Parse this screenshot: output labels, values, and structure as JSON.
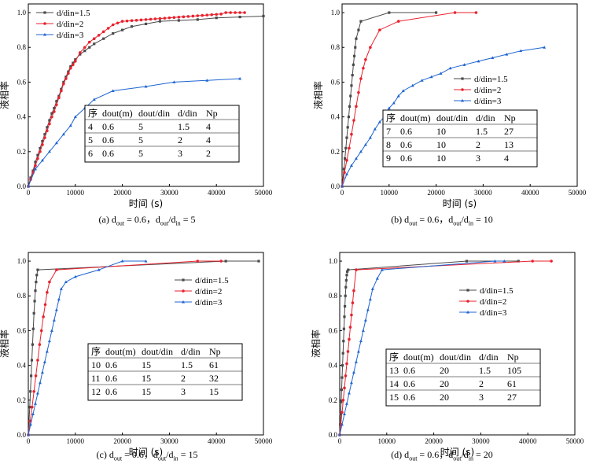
{
  "colors": {
    "d15": "#4a4a4a",
    "d2": "#e8222e",
    "d3": "#1e64d2"
  },
  "chart_data": [
    {
      "type": "line",
      "id": "a",
      "xlabel": "时间 (s)",
      "ylabel": "液相率",
      "xlim": [
        0,
        50000
      ],
      "ylim": [
        0,
        1.05
      ],
      "xticks": [
        "0",
        "10000",
        "20000",
        "30000",
        "40000",
        "50000"
      ],
      "yticks": [
        "0.0",
        "0.2",
        "0.4",
        "0.6",
        "0.8",
        "1.0"
      ],
      "legend_position": "top-left",
      "caption": {
        "prefix": "(a) d",
        "s1": "out",
        "m1": " = 0.6，d",
        "s2": "out",
        "m2": "/d",
        "s3": "in",
        "end": " = 5"
      },
      "series": [
        {
          "name": "d/din=1.5",
          "color_key": "d15",
          "marker": "square",
          "x": [
            0,
            500,
            1000,
            1500,
            2000,
            2500,
            3000,
            3500,
            4000,
            4500,
            5000,
            5500,
            6000,
            6500,
            7000,
            7500,
            8000,
            8500,
            9000,
            9500,
            10000,
            11000,
            12000,
            13000,
            14000,
            16000,
            18000,
            20000,
            22000,
            25000,
            28000,
            32000,
            36000,
            40000,
            45000,
            50000
          ],
          "y": [
            0,
            0.05,
            0.09,
            0.14,
            0.18,
            0.22,
            0.26,
            0.3,
            0.34,
            0.38,
            0.42,
            0.45,
            0.49,
            0.52,
            0.56,
            0.6,
            0.63,
            0.66,
            0.69,
            0.71,
            0.73,
            0.76,
            0.78,
            0.8,
            0.82,
            0.85,
            0.88,
            0.9,
            0.92,
            0.935,
            0.95,
            0.955,
            0.96,
            0.97,
            0.975,
            0.98
          ]
        },
        {
          "name": "d/din=2",
          "color_key": "d2",
          "marker": "circle",
          "x": [
            0,
            500,
            1000,
            1500,
            2000,
            2500,
            3000,
            3500,
            4000,
            4500,
            5000,
            5500,
            6000,
            6500,
            7000,
            7500,
            8000,
            8500,
            9000,
            9500,
            10000,
            11000,
            12000,
            13000,
            14000,
            15000,
            16000,
            17000,
            18000,
            19000,
            20000,
            21000,
            22000,
            23000,
            24000,
            25000,
            26000,
            27000,
            28000,
            29000,
            30000,
            31000,
            32000,
            33000,
            34000,
            35000,
            36000,
            37000,
            38000,
            39000,
            40000,
            41000,
            42000,
            43000,
            44000,
            45000,
            46000
          ],
          "y": [
            0,
            0.04,
            0.08,
            0.12,
            0.16,
            0.2,
            0.24,
            0.28,
            0.32,
            0.36,
            0.4,
            0.43,
            0.47,
            0.51,
            0.55,
            0.59,
            0.62,
            0.65,
            0.68,
            0.7,
            0.72,
            0.77,
            0.8,
            0.83,
            0.85,
            0.87,
            0.89,
            0.91,
            0.93,
            0.94,
            0.95,
            0.952,
            0.954,
            0.956,
            0.958,
            0.96,
            0.962,
            0.964,
            0.966,
            0.968,
            0.97,
            0.972,
            0.974,
            0.976,
            0.978,
            0.98,
            0.982,
            0.984,
            0.986,
            0.988,
            0.99,
            0.992,
            1.0,
            1.0,
            1.0,
            1.0,
            1.0
          ]
        },
        {
          "name": "d/din=3",
          "color_key": "d3",
          "marker": "triangle",
          "x": [
            0,
            1500,
            3000,
            4500,
            6000,
            7500,
            9000,
            10000,
            12000,
            14000,
            18000,
            25000,
            31000,
            38000,
            45000
          ],
          "y": [
            0,
            0.1,
            0.15,
            0.2,
            0.25,
            0.3,
            0.35,
            0.4,
            0.45,
            0.5,
            0.55,
            0.575,
            0.6,
            0.61,
            0.62
          ]
        }
      ],
      "table": {
        "header": [
          "序",
          "dout(m)",
          "dout/din",
          "d/din",
          "Np"
        ],
        "rows": [
          [
            "4",
            "0.6",
            "5",
            "1.5",
            "4"
          ],
          [
            "5",
            "0.6",
            "5",
            "2",
            "4"
          ],
          [
            "6",
            "0.6",
            "5",
            "3",
            "2"
          ]
        ]
      }
    },
    {
      "type": "line",
      "id": "b",
      "xlabel": "时间 (s)",
      "ylabel": "液相率",
      "xlim": [
        0,
        50000
      ],
      "ylim": [
        0,
        1.05
      ],
      "xticks": [
        "0",
        "10000",
        "20000",
        "30000",
        "40000",
        "50000"
      ],
      "yticks": [
        "0.0",
        "0.2",
        "0.4",
        "0.6",
        "0.8",
        "1.0"
      ],
      "legend_position": "right",
      "caption": {
        "prefix": "(b) d",
        "s1": "out",
        "m1": " = 0.6，d",
        "s2": "out",
        "m2": "/d",
        "s3": "in",
        "end": " = 10"
      },
      "series": [
        {
          "name": "d/din=1.5",
          "color_key": "d15",
          "marker": "square",
          "x": [
            0,
            200,
            400,
            600,
            800,
            1000,
            1200,
            1400,
            1600,
            1800,
            2000,
            2200,
            2400,
            2600,
            2800,
            3000,
            3500,
            4000,
            10000,
            20000
          ],
          "y": [
            0,
            0.05,
            0.1,
            0.16,
            0.22,
            0.28,
            0.34,
            0.4,
            0.46,
            0.52,
            0.58,
            0.64,
            0.7,
            0.75,
            0.8,
            0.85,
            0.9,
            0.95,
            1.0,
            1.0
          ]
        },
        {
          "name": "d/din=2",
          "color_key": "d2",
          "marker": "circle",
          "x": [
            0,
            500,
            1000,
            1500,
            2000,
            2500,
            3000,
            3500,
            4000,
            4500,
            5000,
            6000,
            8000,
            12000,
            24000,
            28500
          ],
          "y": [
            0,
            0.08,
            0.15,
            0.22,
            0.3,
            0.38,
            0.46,
            0.54,
            0.62,
            0.68,
            0.73,
            0.8,
            0.9,
            0.95,
            1.0,
            1.0
          ]
        },
        {
          "name": "d/din=3",
          "color_key": "d3",
          "marker": "triangle",
          "x": [
            0,
            1000,
            2000,
            3000,
            4000,
            5000,
            6000,
            7000,
            8000,
            9000,
            10000,
            11000,
            12000,
            13000,
            15000,
            17000,
            19000,
            21000,
            23000,
            26000,
            29000,
            32000,
            35000,
            38000,
            43000
          ],
          "y": [
            0,
            0.07,
            0.12,
            0.16,
            0.2,
            0.24,
            0.28,
            0.33,
            0.37,
            0.4,
            0.45,
            0.48,
            0.52,
            0.55,
            0.58,
            0.61,
            0.63,
            0.65,
            0.68,
            0.7,
            0.72,
            0.74,
            0.76,
            0.78,
            0.8
          ]
        }
      ],
      "table": {
        "header": [
          "序",
          "dout(m)",
          "dout/din",
          "d/din",
          "Np"
        ],
        "rows": [
          [
            "7",
            "0.6",
            "10",
            "1.5",
            "27"
          ],
          [
            "8",
            "0.6",
            "10",
            "2",
            "13"
          ],
          [
            "9",
            "0.6",
            "10",
            "3",
            "4"
          ]
        ]
      }
    },
    {
      "type": "line",
      "id": "c",
      "xlabel": "时间 (s)",
      "ylabel": "液相率",
      "xlim": [
        0,
        50000
      ],
      "ylim": [
        0,
        1.05
      ],
      "xticks": [
        "0",
        "10000",
        "20000",
        "30000",
        "40000",
        "50000"
      ],
      "yticks": [
        "0.0",
        "0.2",
        "0.4",
        "0.6",
        "0.8",
        "1.0"
      ],
      "legend_position": "right",
      "caption": {
        "prefix": "(c) d",
        "s1": "out",
        "m1": " = 0.6，d",
        "s2": "out",
        "m2": "/d",
        "s3": "in",
        "end": " = 15"
      },
      "series": [
        {
          "name": "d/din=1.5",
          "color_key": "d15",
          "marker": "square",
          "x": [
            0,
            150,
            300,
            450,
            600,
            750,
            900,
            1050,
            1200,
            1350,
            1500,
            1650,
            1800,
            2000,
            42000,
            49000
          ],
          "y": [
            0,
            0.08,
            0.16,
            0.25,
            0.34,
            0.43,
            0.52,
            0.61,
            0.7,
            0.77,
            0.83,
            0.88,
            0.92,
            0.95,
            1.0,
            1.0
          ]
        },
        {
          "name": "d/din=2",
          "color_key": "d2",
          "marker": "circle",
          "x": [
            0,
            400,
            800,
            1200,
            1600,
            2000,
            2400,
            2800,
            3200,
            3600,
            4000,
            4500,
            6000,
            36000,
            41000
          ],
          "y": [
            0,
            0.08,
            0.16,
            0.25,
            0.34,
            0.43,
            0.52,
            0.6,
            0.68,
            0.75,
            0.82,
            0.88,
            0.95,
            1.0,
            1.0
          ]
        },
        {
          "name": "d/din=3",
          "color_key": "d3",
          "marker": "triangle",
          "x": [
            0,
            500,
            1000,
            1500,
            2000,
            2500,
            3000,
            3500,
            4000,
            4500,
            5000,
            5500,
            6000,
            6500,
            7000,
            8000,
            10000,
            15000,
            20000,
            25000
          ],
          "y": [
            0,
            0.06,
            0.12,
            0.18,
            0.24,
            0.3,
            0.36,
            0.42,
            0.48,
            0.54,
            0.6,
            0.66,
            0.72,
            0.78,
            0.84,
            0.88,
            0.91,
            0.95,
            1.0,
            1.0
          ]
        }
      ],
      "table": {
        "header": [
          "序",
          "dout(m)",
          "dout/din",
          "d/din",
          "Np"
        ],
        "rows": [
          [
            "10",
            "0.6",
            "15",
            "1.5",
            "61"
          ],
          [
            "11",
            "0.6",
            "15",
            "2",
            "32"
          ],
          [
            "12",
            "0.6",
            "15",
            "3",
            "15"
          ]
        ]
      }
    },
    {
      "type": "line",
      "id": "d",
      "xlabel": "时间 (s)",
      "ylabel": "液相率",
      "xlim": [
        0,
        50000
      ],
      "ylim": [
        0,
        1.05
      ],
      "xticks": [
        "0",
        "10000",
        "20000",
        "30000",
        "40000",
        "50000"
      ],
      "yticks": [
        "0.0",
        "0.2",
        "0.4",
        "0.6",
        "0.8",
        "1.0"
      ],
      "legend_position": "right",
      "caption": {
        "prefix": "(d) d",
        "s1": "out",
        "m1": " = 0.6，d",
        "s2": "out",
        "m2": "/d",
        "s3": "in",
        "end": " = 20"
      },
      "series": [
        {
          "name": "d/din=1.5",
          "color_key": "d15",
          "marker": "square",
          "x": [
            0,
            100,
            200,
            300,
            400,
            500,
            600,
            700,
            800,
            900,
            1000,
            1100,
            1200,
            1300,
            1400,
            1500,
            1600,
            1800,
            27000,
            38000
          ],
          "y": [
            0,
            0.06,
            0.12,
            0.19,
            0.26,
            0.33,
            0.4,
            0.47,
            0.54,
            0.61,
            0.68,
            0.74,
            0.8,
            0.85,
            0.89,
            0.92,
            0.94,
            0.95,
            1.0,
            1.0
          ]
        },
        {
          "name": "d/din=2",
          "color_key": "d2",
          "marker": "circle",
          "x": [
            0,
            250,
            500,
            750,
            1000,
            1250,
            1500,
            1750,
            2000,
            2250,
            2500,
            2750,
            3000,
            3500,
            41000,
            45000
          ],
          "y": [
            0,
            0.06,
            0.13,
            0.2,
            0.27,
            0.34,
            0.41,
            0.48,
            0.55,
            0.62,
            0.69,
            0.76,
            0.83,
            0.95,
            1.0,
            1.0
          ]
        },
        {
          "name": "d/din=3",
          "color_key": "d3",
          "marker": "triangle",
          "x": [
            0,
            500,
            1000,
            1500,
            2000,
            2500,
            3000,
            3500,
            4000,
            4500,
            5000,
            5500,
            6000,
            6500,
            7000,
            8000,
            9000,
            33000,
            35000
          ],
          "y": [
            0,
            0.06,
            0.12,
            0.18,
            0.24,
            0.3,
            0.36,
            0.42,
            0.48,
            0.54,
            0.6,
            0.66,
            0.72,
            0.78,
            0.84,
            0.9,
            0.95,
            1.0,
            1.0
          ]
        }
      ],
      "table": {
        "header": [
          "序",
          "dout(m)",
          "dout/din",
          "d/din",
          "Np"
        ],
        "rows": [
          [
            "13",
            "0.6",
            "20",
            "1.5",
            "105"
          ],
          [
            "14",
            "0.6",
            "20",
            "2",
            "61"
          ],
          [
            "15",
            "0.6",
            "20",
            "3",
            "27"
          ]
        ]
      }
    }
  ]
}
